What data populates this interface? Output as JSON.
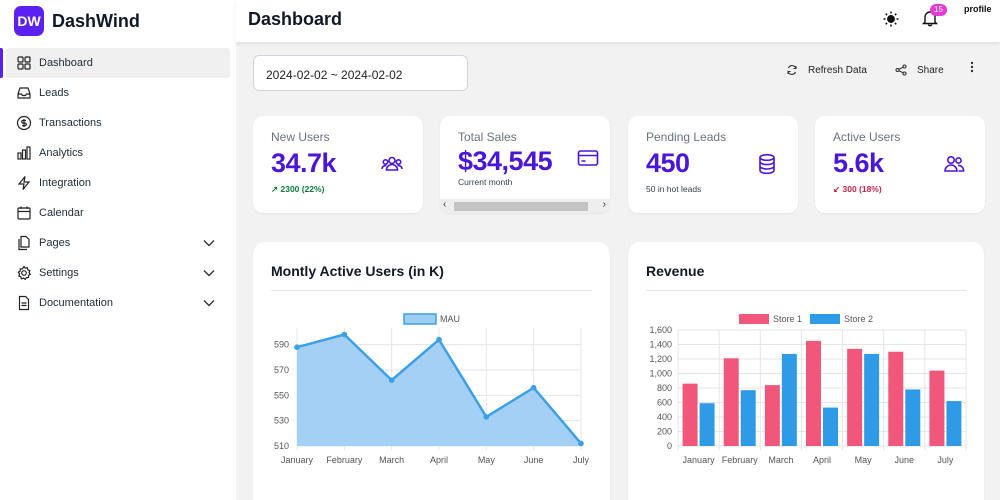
{
  "brand": {
    "logo_text": "DW",
    "name": "DashWind"
  },
  "sidebar": {
    "items": [
      {
        "label": "Dashboard",
        "icon": "grid-icon"
      },
      {
        "label": "Leads",
        "icon": "inbox-icon"
      },
      {
        "label": "Transactions",
        "icon": "dollar-icon"
      },
      {
        "label": "Analytics",
        "icon": "bar-chart-icon"
      },
      {
        "label": "Integration",
        "icon": "bolt-icon"
      },
      {
        "label": "Calendar",
        "icon": "calendar-icon"
      },
      {
        "label": "Pages",
        "icon": "documents-icon"
      },
      {
        "label": "Settings",
        "icon": "gear-icon"
      },
      {
        "label": "Documentation",
        "icon": "document-icon"
      }
    ]
  },
  "header": {
    "title": "Dashboard",
    "notifications": "15",
    "profile": "profile"
  },
  "toolbar": {
    "date_range": "2024-02-02 ~ 2024-02-02",
    "refresh_label": "Refresh Data",
    "share_label": "Share"
  },
  "stats": [
    {
      "title": "New Users",
      "value": "34.7k",
      "description": "↗ 2300 (22%)",
      "icon": "users-group-icon"
    },
    {
      "title": "Total Sales",
      "value": "$34,545",
      "description": "Current month",
      "icon": "credit-card-icon"
    },
    {
      "title": "Pending Leads",
      "value": "450",
      "description": "50 in hot leads",
      "icon": "database-icon"
    },
    {
      "title": "Active Users",
      "value": "5.6k",
      "description": "↙ 300 (18%)",
      "icon": "users-icon"
    }
  ],
  "colors": {
    "accent": "#4a16d9",
    "brand": "#5b21f0",
    "store1": "#f0577a",
    "store2": "#2f9be6",
    "mau_fill": "#9ecdf3",
    "mau_line": "#3d9fe6"
  },
  "charts": {
    "mau_title": "Montly Active Users (in K)",
    "revenue_title": "Revenue"
  },
  "chart_data": [
    {
      "type": "area",
      "title": "Montly Active Users (in K)",
      "categories": [
        "January",
        "February",
        "March",
        "April",
        "May",
        "June",
        "July"
      ],
      "series": [
        {
          "name": "MAU",
          "values": [
            588,
            598,
            562,
            594,
            533,
            556,
            512
          ]
        }
      ],
      "ylim": [
        510,
        600
      ],
      "yticks": [
        510,
        530,
        550,
        570,
        590
      ],
      "legend": "top-center",
      "grid": true
    },
    {
      "type": "bar",
      "title": "Revenue",
      "categories": [
        "January",
        "February",
        "March",
        "April",
        "May",
        "June",
        "July"
      ],
      "series": [
        {
          "name": "Store 1",
          "values": [
            860,
            1210,
            840,
            1450,
            1340,
            1300,
            1040
          ]
        },
        {
          "name": "Store 2",
          "values": [
            590,
            770,
            1270,
            530,
            1270,
            780,
            620
          ]
        }
      ],
      "ylim": [
        0,
        1600
      ],
      "yticks": [
        0,
        200,
        400,
        600,
        800,
        1000,
        1200,
        1400,
        1600
      ],
      "legend": "top-center",
      "grid": true
    }
  ]
}
